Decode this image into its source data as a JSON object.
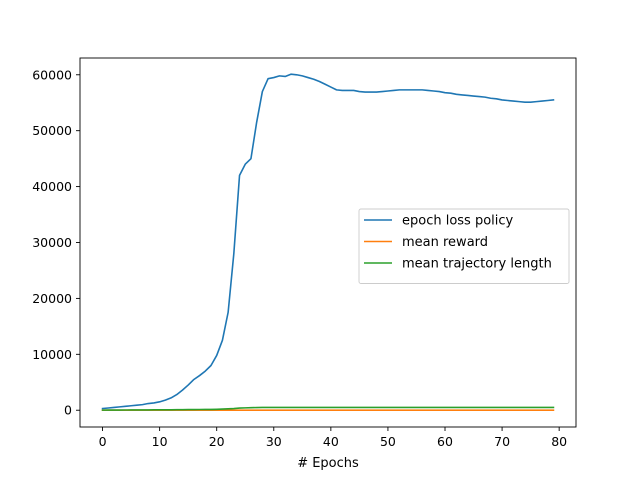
{
  "chart_data": {
    "type": "line",
    "title": "",
    "xlabel": "# Epochs",
    "ylabel": "",
    "xlim": [
      -3.95,
      82.95
    ],
    "ylim": [
      -3000,
      63000
    ],
    "xticks": [
      0,
      10,
      20,
      30,
      40,
      50,
      60,
      70,
      80
    ],
    "yticks": [
      0,
      10000,
      20000,
      30000,
      40000,
      50000,
      60000
    ],
    "grid": false,
    "legend_position": "center-right",
    "series": [
      {
        "name": "epoch loss policy",
        "color": "#1f77b4",
        "x": [
          0,
          1,
          2,
          3,
          4,
          5,
          6,
          7,
          8,
          9,
          10,
          11,
          12,
          13,
          14,
          15,
          16,
          17,
          18,
          19,
          20,
          21,
          22,
          23,
          24,
          25,
          26,
          27,
          28,
          29,
          30,
          31,
          32,
          33,
          34,
          35,
          36,
          37,
          38,
          39,
          40,
          41,
          42,
          43,
          44,
          45,
          46,
          47,
          48,
          49,
          50,
          51,
          52,
          53,
          54,
          55,
          56,
          57,
          58,
          59,
          60,
          61,
          62,
          63,
          64,
          65,
          66,
          67,
          68,
          69,
          70,
          71,
          72,
          73,
          74,
          75,
          76,
          77,
          78,
          79
        ],
        "y": [
          300,
          400,
          500,
          600,
          700,
          800,
          900,
          1000,
          1200,
          1300,
          1500,
          1800,
          2200,
          2800,
          3600,
          4500,
          5500,
          6200,
          7000,
          8000,
          9800,
          12500,
          17500,
          28000,
          42000,
          44000,
          45000,
          51500,
          57000,
          59300,
          59500,
          59800,
          59700,
          60100,
          60000,
          59800,
          59500,
          59200,
          58800,
          58300,
          57800,
          57300,
          57200,
          57200,
          57200,
          57000,
          56900,
          56900,
          56900,
          57000,
          57100,
          57200,
          57300,
          57300,
          57300,
          57300,
          57300,
          57200,
          57100,
          57000,
          56800,
          56700,
          56500,
          56400,
          56300,
          56200,
          56100,
          56000,
          55800,
          55700,
          55500,
          55400,
          55300,
          55200,
          55100,
          55100,
          55200,
          55300,
          55400,
          55500
        ]
      },
      {
        "name": "mean reward",
        "color": "#ff7f0e",
        "x": [
          0,
          1,
          2,
          3,
          4,
          5,
          6,
          7,
          8,
          9,
          10,
          11,
          12,
          13,
          14,
          15,
          16,
          17,
          18,
          19,
          20,
          21,
          22,
          23,
          24,
          25,
          26,
          27,
          28,
          29,
          30,
          31,
          32,
          33,
          34,
          35,
          36,
          37,
          38,
          39,
          40,
          41,
          42,
          43,
          44,
          45,
          46,
          47,
          48,
          49,
          50,
          51,
          52,
          53,
          54,
          55,
          56,
          57,
          58,
          59,
          60,
          61,
          62,
          63,
          64,
          65,
          66,
          67,
          68,
          69,
          70,
          71,
          72,
          73,
          74,
          75,
          76,
          77,
          78,
          79
        ],
        "y": [
          0,
          0,
          0,
          0,
          0,
          0,
          0,
          0,
          0,
          0,
          0,
          0,
          0,
          0,
          0,
          0,
          0,
          0,
          0,
          0,
          0,
          0,
          0,
          0,
          0,
          0,
          0,
          0,
          0,
          0,
          0,
          0,
          0,
          0,
          0,
          0,
          0,
          0,
          0,
          0,
          0,
          0,
          0,
          0,
          0,
          0,
          0,
          0,
          0,
          0,
          0,
          0,
          0,
          0,
          0,
          0,
          0,
          0,
          0,
          0,
          0,
          0,
          0,
          0,
          0,
          0,
          0,
          0,
          0,
          0,
          0,
          0,
          0,
          0,
          0,
          0,
          0,
          0,
          0,
          0
        ]
      },
      {
        "name": "mean trajectory length",
        "color": "#2ca02c",
        "x": [
          0,
          1,
          2,
          3,
          4,
          5,
          6,
          7,
          8,
          9,
          10,
          11,
          12,
          13,
          14,
          15,
          16,
          17,
          18,
          19,
          20,
          21,
          22,
          23,
          24,
          25,
          26,
          27,
          28,
          29,
          30,
          31,
          32,
          33,
          34,
          35,
          36,
          37,
          38,
          39,
          40,
          41,
          42,
          43,
          44,
          45,
          46,
          47,
          48,
          49,
          50,
          51,
          52,
          53,
          54,
          55,
          56,
          57,
          58,
          59,
          60,
          61,
          62,
          63,
          64,
          65,
          66,
          67,
          68,
          69,
          70,
          71,
          72,
          73,
          74,
          75,
          76,
          77,
          78,
          79
        ],
        "y": [
          20,
          25,
          30,
          35,
          40,
          45,
          50,
          55,
          60,
          65,
          70,
          75,
          80,
          90,
          100,
          110,
          120,
          130,
          140,
          150,
          170,
          200,
          250,
          300,
          380,
          420,
          450,
          480,
          500,
          500,
          500,
          500,
          500,
          500,
          500,
          500,
          500,
          500,
          500,
          500,
          500,
          500,
          500,
          500,
          500,
          500,
          500,
          500,
          500,
          500,
          500,
          500,
          500,
          500,
          500,
          500,
          500,
          500,
          500,
          500,
          500,
          500,
          500,
          500,
          500,
          500,
          500,
          500,
          500,
          500,
          500,
          500,
          500,
          500,
          500,
          500,
          500,
          500,
          500,
          500
        ]
      }
    ]
  }
}
